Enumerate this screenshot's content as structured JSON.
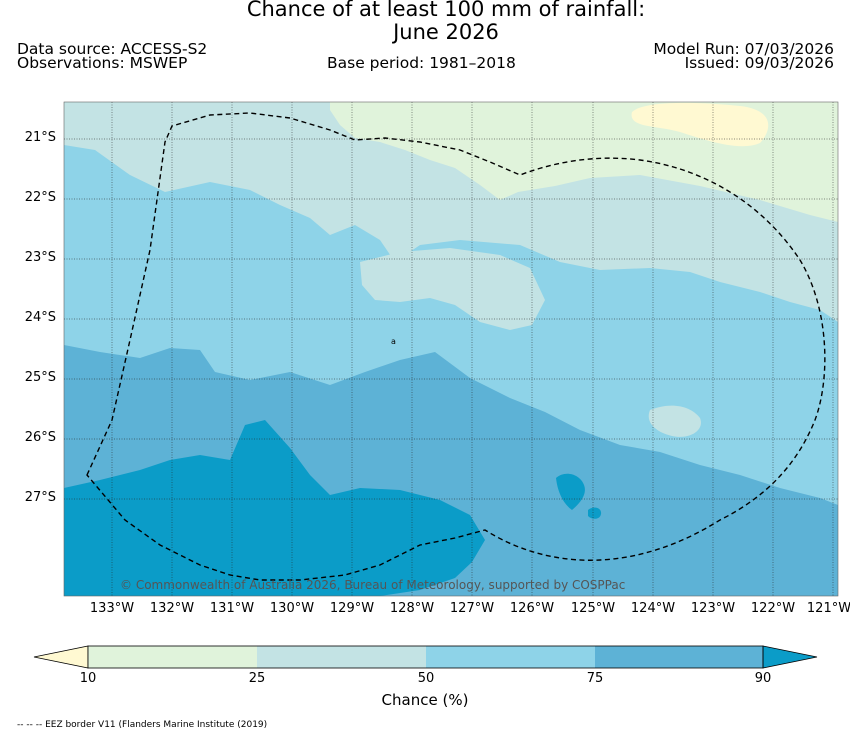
{
  "title": {
    "line1": "Chance of at least 100 mm of rainfall:",
    "line2": "June 2026"
  },
  "header": {
    "data_source": "Data source: ACCESS-S2",
    "observations": "Observations: MSWEP",
    "base_period": "Base period: 1981–2018",
    "model_run": "Model Run: 07/03/2026",
    "issued": "Issued: 09/03/2026"
  },
  "map": {
    "lat_labels": [
      "21°S",
      "22°S",
      "23°S",
      "24°S",
      "25°S",
      "26°S",
      "27°S"
    ],
    "lon_labels": [
      "133°W",
      "132°W",
      "131°W",
      "130°W",
      "129°W",
      "128°W",
      "127°W",
      "126°W",
      "125°W",
      "124°W",
      "123°W",
      "122°W",
      "121°W"
    ],
    "copyright": "© Commonwealth of Australia 2026, Bureau of Meteorology, supported by COSPPac",
    "marker": "a",
    "colors": {
      "c10_25": "#e0f3db",
      "c25_50": "#c3e3e4",
      "c50_75": "#8ed3e8",
      "c75_90": "#5db2d6",
      "c90": "#0b9cc8",
      "below10": "#fff9d2"
    }
  },
  "colorbar": {
    "ticks": [
      "10",
      "25",
      "50",
      "75",
      "90"
    ],
    "label": "Chance (%)"
  },
  "footnote": "-- -- -- EEZ border V11 (Flanders Marine Institute (2019)"
}
